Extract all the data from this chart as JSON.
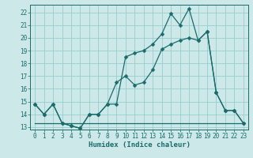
{
  "xlabel": "Humidex (Indice chaleur)",
  "bg_color": "#cce8e8",
  "grid_color": "#99cccc",
  "line_color": "#1a6b6b",
  "xlim": [
    -0.5,
    23.5
  ],
  "ylim": [
    12.8,
    22.6
  ],
  "xticks": [
    0,
    1,
    2,
    3,
    4,
    5,
    6,
    7,
    8,
    9,
    10,
    11,
    12,
    13,
    14,
    15,
    16,
    17,
    18,
    19,
    20,
    21,
    22,
    23
  ],
  "yticks": [
    13,
    14,
    15,
    16,
    17,
    18,
    19,
    20,
    21,
    22
  ],
  "series1_x": [
    0,
    1,
    2,
    3,
    4,
    5,
    6,
    7,
    8,
    9,
    10,
    11,
    12,
    13,
    14,
    15,
    16,
    17,
    18,
    19,
    20,
    21,
    22,
    23
  ],
  "series1_y": [
    14.8,
    14.0,
    14.8,
    13.3,
    13.1,
    12.9,
    14.0,
    14.0,
    14.8,
    14.8,
    18.5,
    18.8,
    19.0,
    19.5,
    20.3,
    21.9,
    21.0,
    22.3,
    19.8,
    20.5,
    15.7,
    14.3,
    14.3,
    13.3
  ],
  "series2_x": [
    0,
    1,
    2,
    3,
    4,
    5,
    6,
    7,
    8,
    9,
    10,
    11,
    12,
    13,
    14,
    15,
    16,
    17,
    18,
    19,
    20,
    21,
    22,
    23
  ],
  "series2_y": [
    14.8,
    14.0,
    14.8,
    13.3,
    13.1,
    12.9,
    14.0,
    14.0,
    14.8,
    16.5,
    17.0,
    16.3,
    16.5,
    17.5,
    19.1,
    19.5,
    19.8,
    20.0,
    19.8,
    20.5,
    15.7,
    14.3,
    14.3,
    13.3
  ],
  "series3_x": [
    0,
    23
  ],
  "series3_y": [
    13.3,
    13.3
  ],
  "tick_fontsize": 5.5,
  "xlabel_fontsize": 6.5,
  "marker_size": 2.5,
  "line_width": 0.9
}
